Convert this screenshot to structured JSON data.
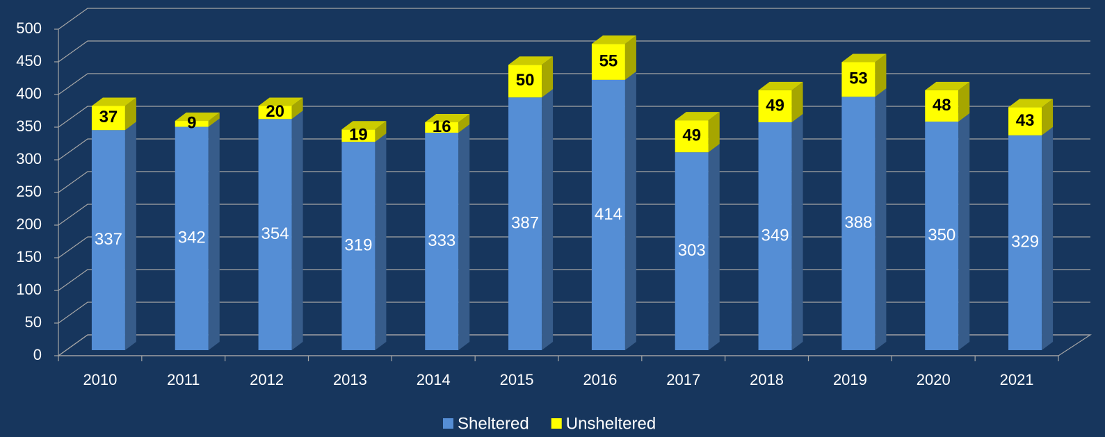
{
  "chart_data": {
    "type": "bar3d_stacked",
    "categories": [
      "2010",
      "2011",
      "2012",
      "2013",
      "2014",
      "2015",
      "2016",
      "2017",
      "2018",
      "2019",
      "2020",
      "2021"
    ],
    "series": [
      {
        "name": "Sheltered",
        "color": "#558ed5",
        "values": [
          337,
          342,
          354,
          319,
          333,
          387,
          414,
          303,
          349,
          388,
          350,
          329
        ]
      },
      {
        "name": "Unsheltered",
        "color": "#ffff00",
        "values": [
          37,
          9,
          20,
          19,
          16,
          50,
          55,
          49,
          49,
          53,
          48,
          43
        ]
      }
    ],
    "ylim": [
      0,
      500
    ],
    "yticks": [
      0,
      50,
      100,
      150,
      200,
      250,
      300,
      350,
      400,
      450,
      500
    ],
    "grid": true,
    "legend": "bottom"
  }
}
